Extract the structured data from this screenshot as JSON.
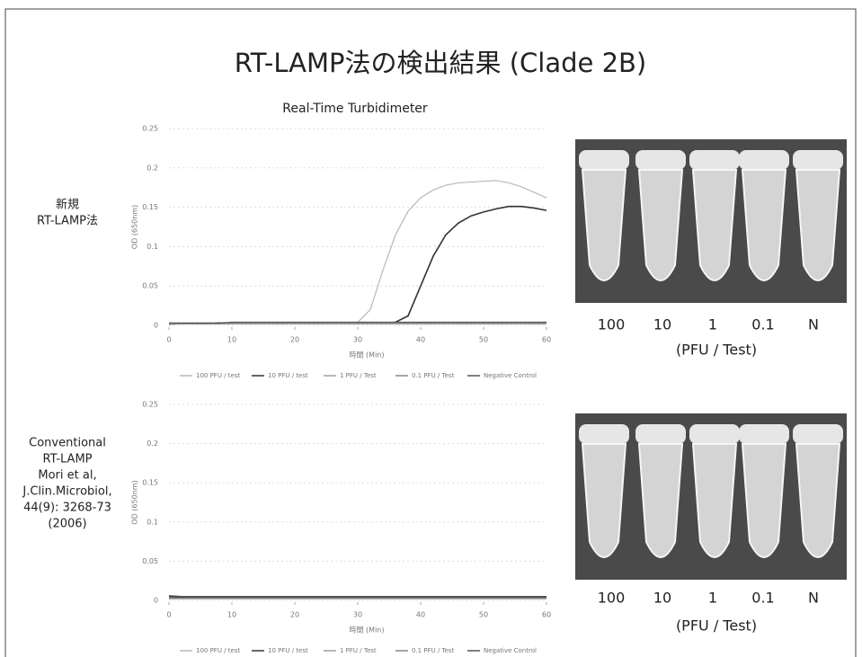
{
  "title": "RT-LAMP法の検出結果 (Clade 2B)",
  "row_labels": [
    [
      "新規",
      "RT-LAMP法"
    ],
    [
      "Conventional",
      "RT-LAMP",
      "Mori et al,",
      "J.Clin.Microbiol,",
      "44(9): 3268-73",
      "(2006)"
    ]
  ],
  "photos": [
    {
      "tube_labels": [
        "100",
        "10",
        "1",
        "0.1",
        "N"
      ],
      "caption": "(PFU / Test)"
    },
    {
      "tube_labels": [
        "100",
        "10",
        "1",
        "0.1",
        "N"
      ],
      "caption": "(PFU / Test)"
    }
  ],
  "chart_data": [
    {
      "type": "line",
      "title": "Real-Time Turbidimeter",
      "x_label": "時間 (Min)",
      "y_label": "OD (650nm)",
      "x": [
        0,
        2,
        4,
        6,
        8,
        10,
        12,
        14,
        16,
        18,
        20,
        22,
        24,
        26,
        28,
        30,
        32,
        34,
        36,
        38,
        40,
        42,
        44,
        46,
        48,
        50,
        52,
        54,
        56,
        58,
        60
      ],
      "xlim": [
        0,
        60
      ],
      "xticks": [
        0,
        10,
        20,
        30,
        40,
        50,
        60
      ],
      "ylim": [
        0,
        0.25
      ],
      "yticks": [
        0,
        0.05,
        0.1,
        0.15,
        0.2,
        0.25
      ],
      "grid": true,
      "series": [
        {
          "name": "100 PFU / test",
          "color": "#b8b8b8",
          "values": [
            0.002,
            0.002,
            0.002,
            0.002,
            0.003,
            0.003,
            0.003,
            0.003,
            0.003,
            0.003,
            0.003,
            0.003,
            0.003,
            0.003,
            0.003,
            0.004,
            0.02,
            0.07,
            0.115,
            0.145,
            0.162,
            0.172,
            0.178,
            0.181,
            0.182,
            0.183,
            0.184,
            0.181,
            0.176,
            0.169,
            0.162
          ]
        },
        {
          "name": "10 PFU / test",
          "color": "#333333",
          "values": [
            0.002,
            0.002,
            0.002,
            0.002,
            0.003,
            0.003,
            0.003,
            0.003,
            0.003,
            0.003,
            0.003,
            0.003,
            0.003,
            0.003,
            0.003,
            0.003,
            0.003,
            0.003,
            0.004,
            0.012,
            0.05,
            0.088,
            0.115,
            0.13,
            0.139,
            0.144,
            0.148,
            0.151,
            0.151,
            0.149,
            0.146
          ]
        },
        {
          "name": "1 PFU / Test",
          "color": "#a0a0a0",
          "values": [
            0.001,
            0.002,
            0.002,
            0.002,
            0.002,
            0.003,
            0.003,
            0.003,
            0.003,
            0.003,
            0.003,
            0.003,
            0.003,
            0.003,
            0.003,
            0.003,
            0.003,
            0.003,
            0.003,
            0.003,
            0.003,
            0.003,
            0.003,
            0.003,
            0.003,
            0.003,
            0.003,
            0.003,
            0.003,
            0.003,
            0.003
          ]
        },
        {
          "name": "0.1 PFU / Test",
          "color": "#888888",
          "values": [
            0.002,
            0.002,
            0.002,
            0.002,
            0.002,
            0.002,
            0.002,
            0.002,
            0.002,
            0.002,
            0.002,
            0.002,
            0.002,
            0.002,
            0.002,
            0.002,
            0.002,
            0.002,
            0.002,
            0.002,
            0.002,
            0.002,
            0.002,
            0.002,
            0.002,
            0.002,
            0.002,
            0.002,
            0.002,
            0.002,
            0.002
          ]
        },
        {
          "name": "Negative Control",
          "color": "#555555",
          "values": [
            0.003,
            0.003,
            0.003,
            0.003,
            0.003,
            0.004,
            0.004,
            0.004,
            0.004,
            0.004,
            0.004,
            0.004,
            0.004,
            0.004,
            0.004,
            0.004,
            0.004,
            0.004,
            0.004,
            0.004,
            0.004,
            0.004,
            0.004,
            0.004,
            0.004,
            0.004,
            0.004,
            0.004,
            0.004,
            0.004,
            0.004
          ]
        }
      ]
    },
    {
      "type": "line",
      "x_label": "時間 (Min)",
      "y_label": "OD (650nm)",
      "x": [
        0,
        2,
        4,
        6,
        8,
        10,
        12,
        14,
        16,
        18,
        20,
        22,
        24,
        26,
        28,
        30,
        32,
        34,
        36,
        38,
        40,
        42,
        44,
        46,
        48,
        50,
        52,
        54,
        56,
        58,
        60
      ],
      "xlim": [
        0,
        60
      ],
      "xticks": [
        0,
        10,
        20,
        30,
        40,
        50,
        60
      ],
      "ylim": [
        0,
        0.25
      ],
      "yticks": [
        0,
        0.05,
        0.1,
        0.15,
        0.2,
        0.25
      ],
      "grid": true,
      "series": [
        {
          "name": "100 PFU / test",
          "color": "#b8b8b8",
          "values": [
            0.004,
            0.003,
            0.003,
            0.003,
            0.003,
            0.003,
            0.003,
            0.003,
            0.003,
            0.003,
            0.003,
            0.003,
            0.003,
            0.003,
            0.003,
            0.003,
            0.003,
            0.003,
            0.003,
            0.003,
            0.003,
            0.003,
            0.003,
            0.003,
            0.003,
            0.003,
            0.003,
            0.003,
            0.003,
            0.003,
            0.003
          ]
        },
        {
          "name": "10 PFU / test",
          "color": "#333333",
          "values": [
            0.005,
            0.004,
            0.004,
            0.004,
            0.004,
            0.004,
            0.004,
            0.004,
            0.004,
            0.004,
            0.004,
            0.004,
            0.004,
            0.004,
            0.004,
            0.004,
            0.004,
            0.004,
            0.004,
            0.004,
            0.004,
            0.004,
            0.004,
            0.004,
            0.004,
            0.004,
            0.004,
            0.004,
            0.004,
            0.004,
            0.004
          ]
        },
        {
          "name": "1 PFU / Test",
          "color": "#a0a0a0",
          "values": [
            0.002,
            0.002,
            0.002,
            0.002,
            0.002,
            0.002,
            0.002,
            0.002,
            0.002,
            0.002,
            0.002,
            0.002,
            0.002,
            0.002,
            0.002,
            0.002,
            0.002,
            0.002,
            0.002,
            0.002,
            0.002,
            0.002,
            0.002,
            0.002,
            0.002,
            0.002,
            0.002,
            0.002,
            0.002,
            0.002,
            0.002
          ]
        },
        {
          "name": "0.1 PFU / Test",
          "color": "#888888",
          "values": [
            0.003,
            0.003,
            0.003,
            0.003,
            0.003,
            0.003,
            0.003,
            0.003,
            0.003,
            0.003,
            0.003,
            0.003,
            0.003,
            0.003,
            0.003,
            0.003,
            0.003,
            0.003,
            0.003,
            0.003,
            0.003,
            0.003,
            0.003,
            0.003,
            0.003,
            0.003,
            0.003,
            0.003,
            0.003,
            0.003,
            0.003
          ]
        },
        {
          "name": "Negative Control",
          "color": "#555555",
          "values": [
            0.006,
            0.005,
            0.005,
            0.005,
            0.005,
            0.005,
            0.005,
            0.005,
            0.005,
            0.005,
            0.005,
            0.005,
            0.005,
            0.005,
            0.005,
            0.005,
            0.005,
            0.005,
            0.005,
            0.005,
            0.005,
            0.005,
            0.005,
            0.005,
            0.005,
            0.005,
            0.005,
            0.005,
            0.005,
            0.005,
            0.005
          ]
        }
      ]
    }
  ]
}
